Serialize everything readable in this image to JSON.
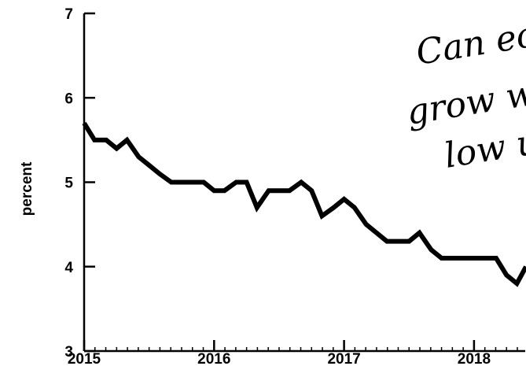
{
  "chart_data": {
    "type": "line",
    "title": "",
    "xlabel": "",
    "ylabel": "percent",
    "ylim": [
      3,
      7
    ],
    "yticks": [
      3,
      4,
      5,
      6,
      7
    ],
    "xlim": [
      2015.0,
      2018.4
    ],
    "xticks": [
      "2015",
      "2016",
      "2017",
      "2018"
    ],
    "grid": false,
    "legend": "none",
    "series": [
      {
        "x": [
          2015.0,
          2015.08,
          2015.17,
          2015.25,
          2015.33,
          2015.42,
          2015.5,
          2015.58,
          2015.67,
          2015.75,
          2015.83,
          2015.92,
          2016.0,
          2016.08,
          2016.17,
          2016.25,
          2016.33,
          2016.42,
          2016.5,
          2016.58,
          2016.67,
          2016.75,
          2016.83,
          2016.92,
          2017.0,
          2017.08,
          2017.17,
          2017.25,
          2017.33,
          2017.42,
          2017.5,
          2017.58,
          2017.67,
          2017.75,
          2017.83,
          2017.92,
          2018.0,
          2018.08,
          2018.17,
          2018.25,
          2018.33,
          2018.4
        ],
        "values": [
          5.7,
          5.5,
          5.5,
          5.4,
          5.5,
          5.3,
          5.2,
          5.1,
          5.0,
          5.0,
          5.0,
          5.0,
          4.9,
          4.9,
          5.0,
          5.0,
          4.7,
          4.9,
          4.9,
          4.9,
          5.0,
          4.9,
          4.6,
          4.7,
          4.8,
          4.7,
          4.5,
          4.4,
          4.3,
          4.3,
          4.3,
          4.4,
          4.2,
          4.1,
          4.1,
          4.1,
          4.1,
          4.1,
          4.1,
          3.9,
          3.8,
          4.0
        ]
      }
    ],
    "annotation": {
      "lines": [
        "Can ec",
        "grow w",
        "low u"
      ]
    }
  }
}
